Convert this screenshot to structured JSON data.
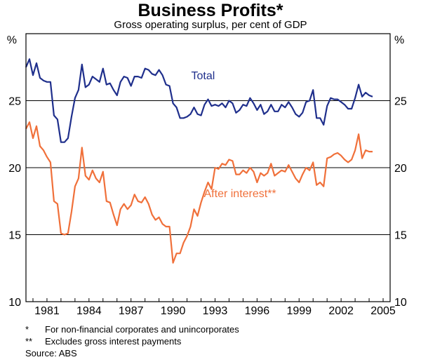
{
  "title": "Business Profits*",
  "subtitle": "Gross operating surplus, per cent of GDP",
  "footnotes": [
    {
      "mark": "*",
      "text": "For non-financial corporates and unincorporates"
    },
    {
      "mark": "**",
      "text": "Excludes gross interest payments"
    }
  ],
  "source": "Source: ABS",
  "colors": {
    "total": "#1f2f8c",
    "after_interest": "#f0703a",
    "axis": "#000000"
  },
  "chart_data": {
    "type": "line",
    "title": "Business Profits*",
    "subtitle": "Gross operating surplus, per cent of GDP",
    "xlabel": "",
    "ylabel": "%",
    "ylabel_right": "%",
    "xlim": [
      1979.5,
      2005.5
    ],
    "ylim": [
      10,
      30
    ],
    "x_ticks": [
      1981,
      1984,
      1987,
      1990,
      1993,
      1996,
      1999,
      2002,
      2005
    ],
    "x_tick_labels": [
      "1981",
      "1984",
      "1987",
      "1990",
      "1993",
      "1996",
      "1999",
      "2002",
      "2005"
    ],
    "y_ticks": [
      10,
      15,
      20,
      25
    ],
    "y_tick_labels": [
      "10",
      "15",
      "20",
      "25"
    ],
    "gridlines_y": [
      15,
      20,
      25
    ],
    "series": [
      {
        "name": "Total",
        "label_position": {
          "x": 1991.3,
          "y": 26.6
        },
        "points": [
          [
            1979.5,
            27.5
          ],
          [
            1979.75,
            28.1
          ],
          [
            1980.0,
            26.9
          ],
          [
            1980.25,
            27.8
          ],
          [
            1980.5,
            26.7
          ],
          [
            1980.75,
            26.5
          ],
          [
            1981.0,
            26.4
          ],
          [
            1981.25,
            26.4
          ],
          [
            1981.5,
            23.9
          ],
          [
            1981.75,
            23.6
          ],
          [
            1982.0,
            21.9
          ],
          [
            1982.25,
            21.9
          ],
          [
            1982.5,
            22.2
          ],
          [
            1982.75,
            23.8
          ],
          [
            1983.0,
            25.2
          ],
          [
            1983.25,
            25.8
          ],
          [
            1983.5,
            27.7
          ],
          [
            1983.75,
            26.0
          ],
          [
            1984.0,
            26.2
          ],
          [
            1984.25,
            26.8
          ],
          [
            1984.5,
            26.6
          ],
          [
            1984.75,
            26.4
          ],
          [
            1985.0,
            27.4
          ],
          [
            1985.25,
            26.2
          ],
          [
            1985.5,
            26.3
          ],
          [
            1985.75,
            25.8
          ],
          [
            1986.0,
            25.4
          ],
          [
            1986.25,
            26.4
          ],
          [
            1986.5,
            26.8
          ],
          [
            1986.75,
            26.7
          ],
          [
            1987.0,
            26.1
          ],
          [
            1987.25,
            26.8
          ],
          [
            1987.5,
            26.8
          ],
          [
            1987.75,
            26.7
          ],
          [
            1988.0,
            27.4
          ],
          [
            1988.25,
            27.3
          ],
          [
            1988.5,
            27.0
          ],
          [
            1988.75,
            26.9
          ],
          [
            1989.0,
            27.3
          ],
          [
            1989.25,
            26.9
          ],
          [
            1989.5,
            26.2
          ],
          [
            1989.75,
            26.1
          ],
          [
            1990.0,
            24.8
          ],
          [
            1990.25,
            24.5
          ],
          [
            1990.5,
            23.7
          ],
          [
            1990.75,
            23.7
          ],
          [
            1991.0,
            23.8
          ],
          [
            1991.25,
            24.0
          ],
          [
            1991.5,
            24.5
          ],
          [
            1991.75,
            24.0
          ],
          [
            1992.0,
            23.9
          ],
          [
            1992.25,
            24.7
          ],
          [
            1992.5,
            25.1
          ],
          [
            1992.75,
            24.6
          ],
          [
            1993.0,
            24.7
          ],
          [
            1993.25,
            24.6
          ],
          [
            1993.5,
            24.8
          ],
          [
            1993.75,
            24.5
          ],
          [
            1994.0,
            25.0
          ],
          [
            1994.25,
            24.8
          ],
          [
            1994.5,
            24.1
          ],
          [
            1994.75,
            24.3
          ],
          [
            1995.0,
            24.7
          ],
          [
            1995.25,
            24.6
          ],
          [
            1995.5,
            25.2
          ],
          [
            1995.75,
            24.8
          ],
          [
            1996.0,
            24.3
          ],
          [
            1996.25,
            24.7
          ],
          [
            1996.5,
            24.0
          ],
          [
            1996.75,
            24.2
          ],
          [
            1997.0,
            24.7
          ],
          [
            1997.25,
            24.2
          ],
          [
            1997.5,
            24.2
          ],
          [
            1997.75,
            24.7
          ],
          [
            1998.0,
            24.5
          ],
          [
            1998.25,
            24.9
          ],
          [
            1998.5,
            24.5
          ],
          [
            1998.75,
            24.0
          ],
          [
            1999.0,
            23.8
          ],
          [
            1999.25,
            24.1
          ],
          [
            1999.5,
            24.9
          ],
          [
            1999.75,
            25.0
          ],
          [
            2000.0,
            25.8
          ],
          [
            2000.25,
            23.7
          ],
          [
            2000.5,
            23.7
          ],
          [
            2000.75,
            23.2
          ],
          [
            2001.0,
            24.6
          ],
          [
            2001.25,
            25.2
          ],
          [
            2001.5,
            25.1
          ],
          [
            2001.75,
            25.1
          ],
          [
            2002.0,
            24.9
          ],
          [
            2002.25,
            24.7
          ],
          [
            2002.5,
            24.4
          ],
          [
            2002.75,
            24.4
          ],
          [
            2003.0,
            25.2
          ],
          [
            2003.25,
            26.2
          ],
          [
            2003.5,
            25.3
          ],
          [
            2003.75,
            25.6
          ],
          [
            2004.0,
            25.4
          ],
          [
            2004.25,
            25.3
          ]
        ]
      },
      {
        "name": "After interest**",
        "label_position": {
          "x": 1992.2,
          "y": 17.8
        },
        "points": [
          [
            1979.5,
            22.9
          ],
          [
            1979.75,
            23.4
          ],
          [
            1980.0,
            22.2
          ],
          [
            1980.25,
            23.1
          ],
          [
            1980.5,
            21.6
          ],
          [
            1980.75,
            21.3
          ],
          [
            1981.0,
            20.8
          ],
          [
            1981.25,
            20.4
          ],
          [
            1981.5,
            17.5
          ],
          [
            1981.75,
            17.3
          ],
          [
            1982.0,
            15.1
          ],
          [
            1982.25,
            15.0
          ],
          [
            1982.5,
            15.1
          ],
          [
            1982.75,
            16.7
          ],
          [
            1983.0,
            18.6
          ],
          [
            1983.25,
            19.2
          ],
          [
            1983.5,
            21.5
          ],
          [
            1983.75,
            19.4
          ],
          [
            1984.0,
            19.1
          ],
          [
            1984.25,
            19.8
          ],
          [
            1984.5,
            19.2
          ],
          [
            1984.75,
            18.9
          ],
          [
            1985.0,
            19.7
          ],
          [
            1985.25,
            17.5
          ],
          [
            1985.5,
            17.4
          ],
          [
            1985.75,
            16.5
          ],
          [
            1986.0,
            15.7
          ],
          [
            1986.25,
            16.9
          ],
          [
            1986.5,
            17.3
          ],
          [
            1986.75,
            16.9
          ],
          [
            1987.0,
            17.2
          ],
          [
            1987.25,
            18.0
          ],
          [
            1987.5,
            17.5
          ],
          [
            1987.75,
            17.4
          ],
          [
            1988.0,
            17.8
          ],
          [
            1988.25,
            17.3
          ],
          [
            1988.5,
            16.5
          ],
          [
            1988.75,
            16.1
          ],
          [
            1989.0,
            16.3
          ],
          [
            1989.25,
            15.8
          ],
          [
            1989.5,
            15.6
          ],
          [
            1989.75,
            15.6
          ],
          [
            1990.0,
            12.9
          ],
          [
            1990.25,
            13.6
          ],
          [
            1990.5,
            13.6
          ],
          [
            1990.75,
            14.4
          ],
          [
            1991.0,
            14.9
          ],
          [
            1991.25,
            15.6
          ],
          [
            1991.5,
            16.9
          ],
          [
            1991.75,
            16.4
          ],
          [
            1992.0,
            17.4
          ],
          [
            1992.25,
            18.2
          ],
          [
            1992.5,
            18.9
          ],
          [
            1992.75,
            18.4
          ],
          [
            1993.0,
            20.0
          ],
          [
            1993.25,
            19.9
          ],
          [
            1993.5,
            20.3
          ],
          [
            1993.75,
            20.2
          ],
          [
            1994.0,
            20.6
          ],
          [
            1994.25,
            20.5
          ],
          [
            1994.5,
            19.5
          ],
          [
            1994.75,
            19.5
          ],
          [
            1995.0,
            19.8
          ],
          [
            1995.25,
            19.6
          ],
          [
            1995.5,
            20.0
          ],
          [
            1995.75,
            19.7
          ],
          [
            1996.0,
            18.9
          ],
          [
            1996.25,
            19.6
          ],
          [
            1996.5,
            19.4
          ],
          [
            1996.75,
            19.6
          ],
          [
            1997.0,
            20.3
          ],
          [
            1997.25,
            19.4
          ],
          [
            1997.5,
            19.6
          ],
          [
            1997.75,
            19.8
          ],
          [
            1998.0,
            19.7
          ],
          [
            1998.25,
            20.2
          ],
          [
            1998.5,
            19.7
          ],
          [
            1998.75,
            19.2
          ],
          [
            1999.0,
            18.9
          ],
          [
            1999.25,
            19.5
          ],
          [
            1999.5,
            20.0
          ],
          [
            1999.75,
            19.8
          ],
          [
            2000.0,
            20.4
          ],
          [
            2000.25,
            18.7
          ],
          [
            2000.5,
            18.9
          ],
          [
            2000.75,
            18.6
          ],
          [
            2001.0,
            20.7
          ],
          [
            2001.25,
            20.8
          ],
          [
            2001.5,
            21.0
          ],
          [
            2001.75,
            21.1
          ],
          [
            2002.0,
            20.9
          ],
          [
            2002.25,
            20.6
          ],
          [
            2002.5,
            20.4
          ],
          [
            2002.75,
            20.6
          ],
          [
            2003.0,
            21.3
          ],
          [
            2003.25,
            22.5
          ],
          [
            2003.5,
            20.7
          ],
          [
            2003.75,
            21.3
          ],
          [
            2004.0,
            21.2
          ],
          [
            2004.25,
            21.2
          ]
        ]
      }
    ]
  }
}
